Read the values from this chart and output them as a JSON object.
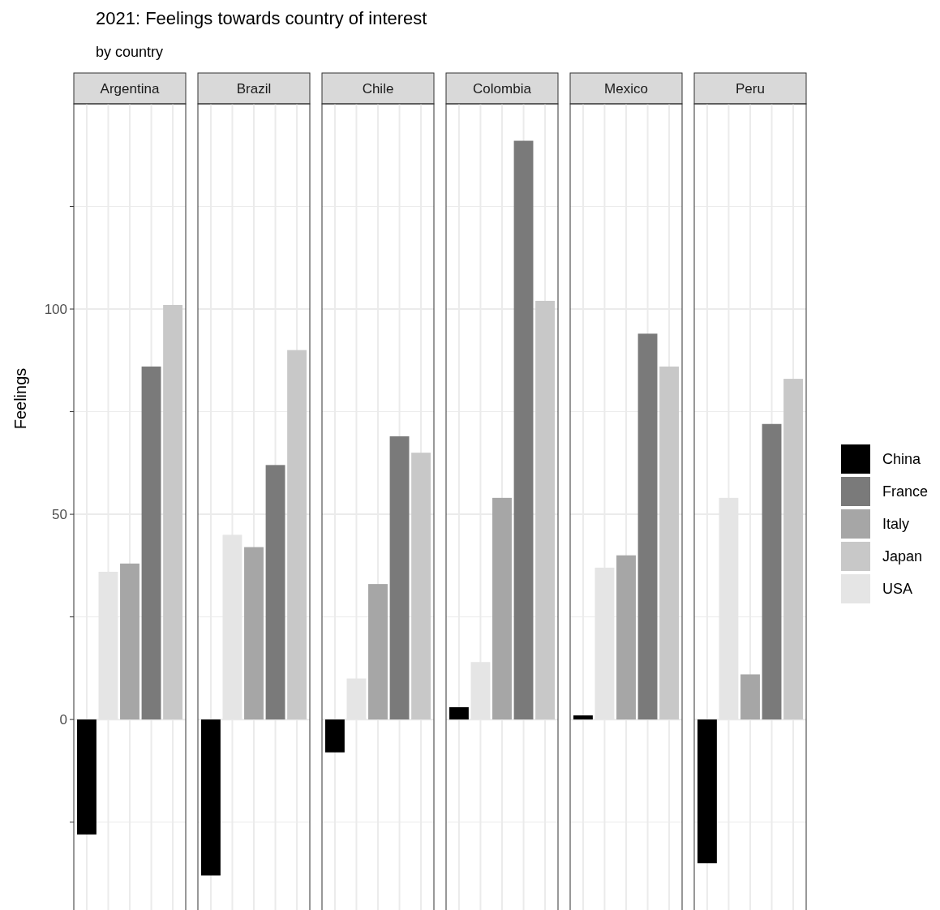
{
  "chart_data": {
    "type": "bar",
    "title": "2021: Feelings towards country of interest",
    "subtitle": "by country",
    "ylabel": "Feelings",
    "categories": [
      "Argentina",
      "Brazil",
      "Chile",
      "Colombia",
      "Mexico",
      "Peru"
    ],
    "series": [
      {
        "name": "China",
        "color": "#000000",
        "values": [
          -28,
          -38,
          -8,
          3,
          1,
          -35
        ]
      },
      {
        "name": "USA",
        "color": "#e5e5e5",
        "values": [
          36,
          45,
          10,
          14,
          37,
          54
        ]
      },
      {
        "name": "Italy",
        "color": "#a6a6a6",
        "values": [
          38,
          42,
          33,
          54,
          40,
          11
        ]
      },
      {
        "name": "France",
        "color": "#7a7a7a",
        "values": [
          86,
          62,
          69,
          141,
          94,
          72
        ]
      },
      {
        "name": "Japan",
        "color": "#c8c8c8",
        "values": [
          101,
          90,
          65,
          102,
          86,
          83
        ]
      }
    ],
    "ylim": [
      -47,
      150
    ],
    "yticks": [
      {
        "value": -25,
        "label": null
      },
      0,
      {
        "value": 25,
        "label": null
      },
      50,
      {
        "value": 75,
        "label": null
      },
      100,
      {
        "value": 125,
        "label": null
      }
    ],
    "grid": true,
    "legend": "right"
  }
}
